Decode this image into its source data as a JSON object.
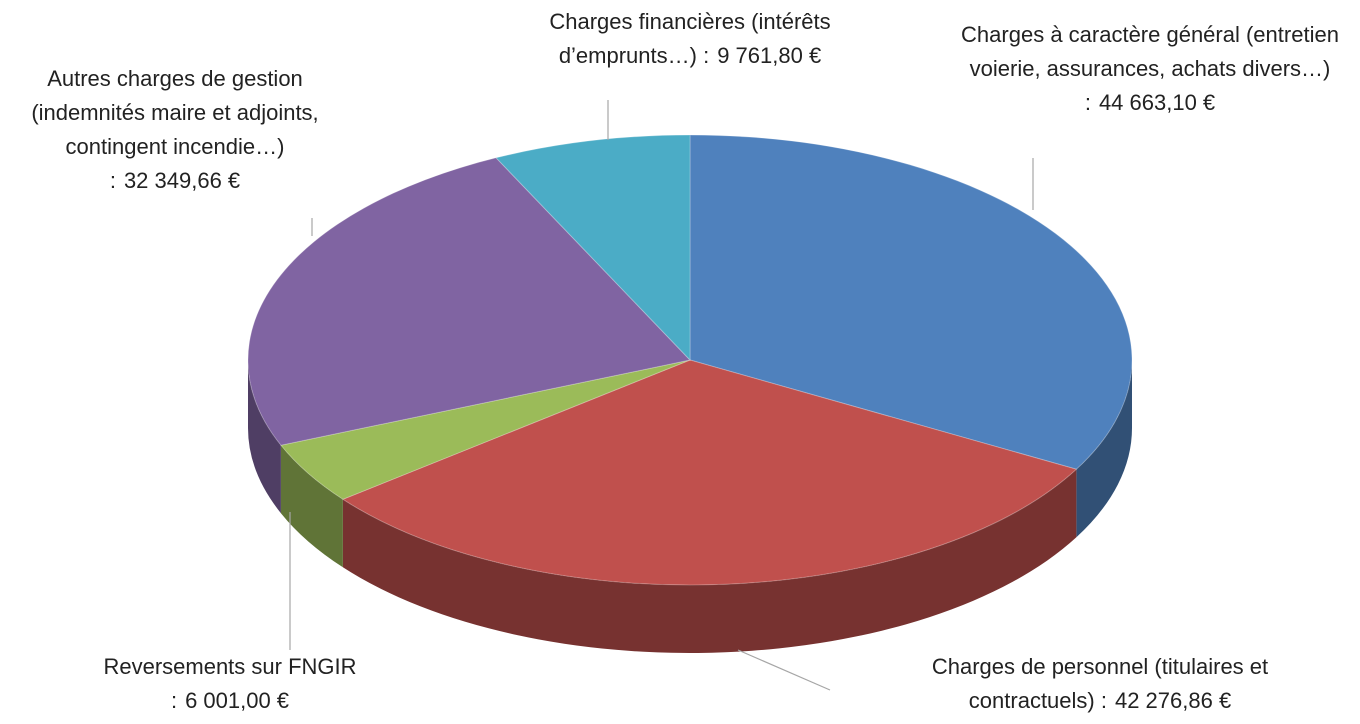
{
  "chart_data": {
    "type": "pie",
    "categories": [
      "Charges à caractère général (entretien voierie, assurances, achats divers…) :",
      "Charges de personnel (titulaires et contractuels) :",
      "Reversements sur FNGIR :",
      "Autres charges de gestion (indemnités maire et adjoints, contingent incendie…) :",
      "Charges financières (intérêts d’emprunts…) :"
    ],
    "values": [
      44663.1,
      42276.86,
      6001.0,
      32349.66,
      9761.8
    ],
    "value_labels": [
      "44 663,10 €",
      "42 276,86 €",
      "6 001,00 €",
      "32 349,66 €",
      "9 761,80 €"
    ],
    "colors": [
      "#4f81bd",
      "#c0504d",
      "#9bbb59",
      "#8064a2",
      "#4bacc6"
    ]
  }
}
